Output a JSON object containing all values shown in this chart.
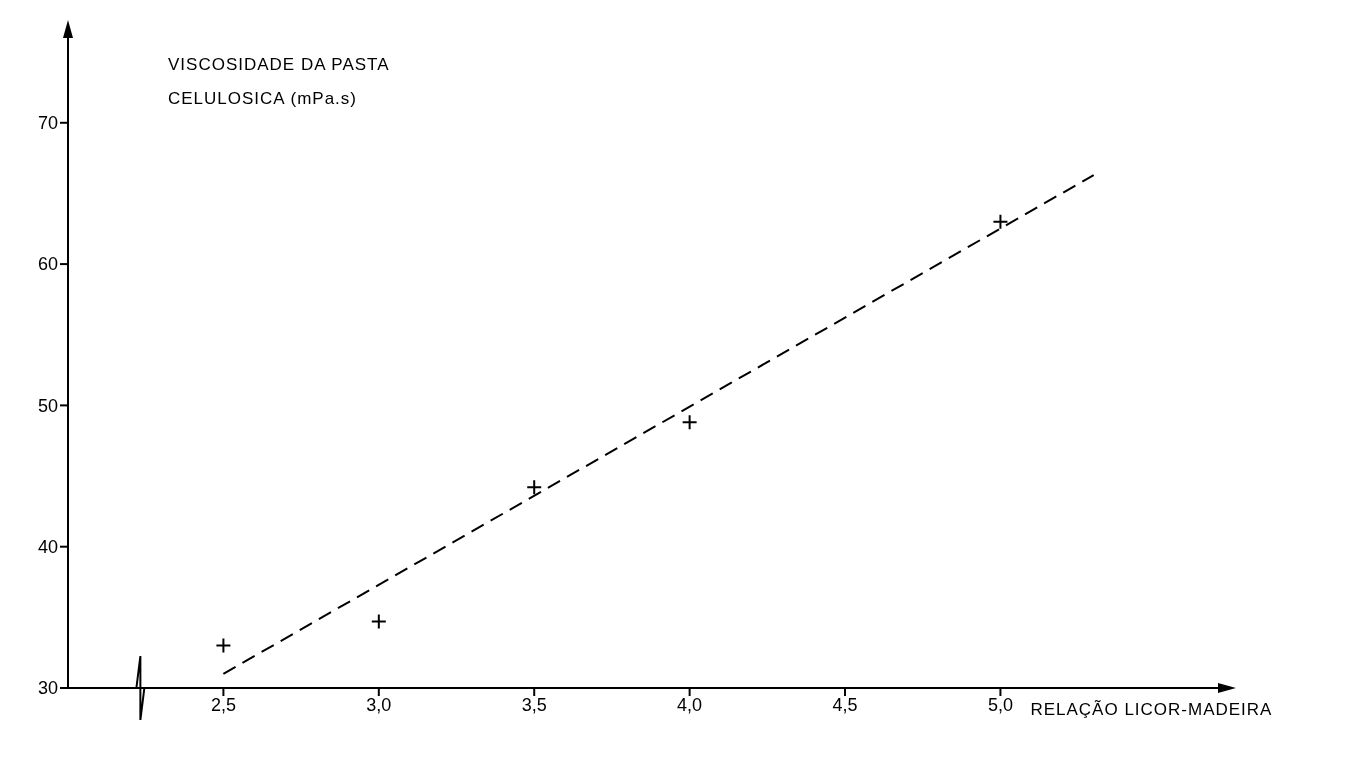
{
  "chart_data": {
    "type": "scatter",
    "ylabel": "VISCOSIDADE DA PASTA\nCELULOSICA (mPa.s)",
    "xlabel": "RELAÇÃO LICOR-MADEIRA",
    "xlim": [
      2.0,
      5.7
    ],
    "xticks": [
      {
        "value": 2.5,
        "label": "2,5"
      },
      {
        "value": 3.0,
        "label": "3,0"
      },
      {
        "value": 3.5,
        "label": "3,5"
      },
      {
        "value": 4.0,
        "label": "4,0"
      },
      {
        "value": 4.5,
        "label": "4,5"
      },
      {
        "value": 5.0,
        "label": "5,0"
      }
    ],
    "ylim": [
      30,
      76
    ],
    "yticks": [
      30,
      40,
      50,
      60,
      70
    ],
    "grid": false,
    "legend": false,
    "series": [
      {
        "type": "scatter",
        "color": "#000000",
        "marker": "cross",
        "x": [
          2.5,
          3.0,
          3.5,
          4.0,
          5.0
        ],
        "values": [
          33.0,
          34.7,
          44.2,
          48.8,
          63.0
        ]
      },
      {
        "type": "line",
        "color": "#000000",
        "line_style": "dashed",
        "marker": "none",
        "x": [
          2.5,
          5.3
        ],
        "values": [
          31.0,
          66.3
        ]
      }
    ]
  }
}
